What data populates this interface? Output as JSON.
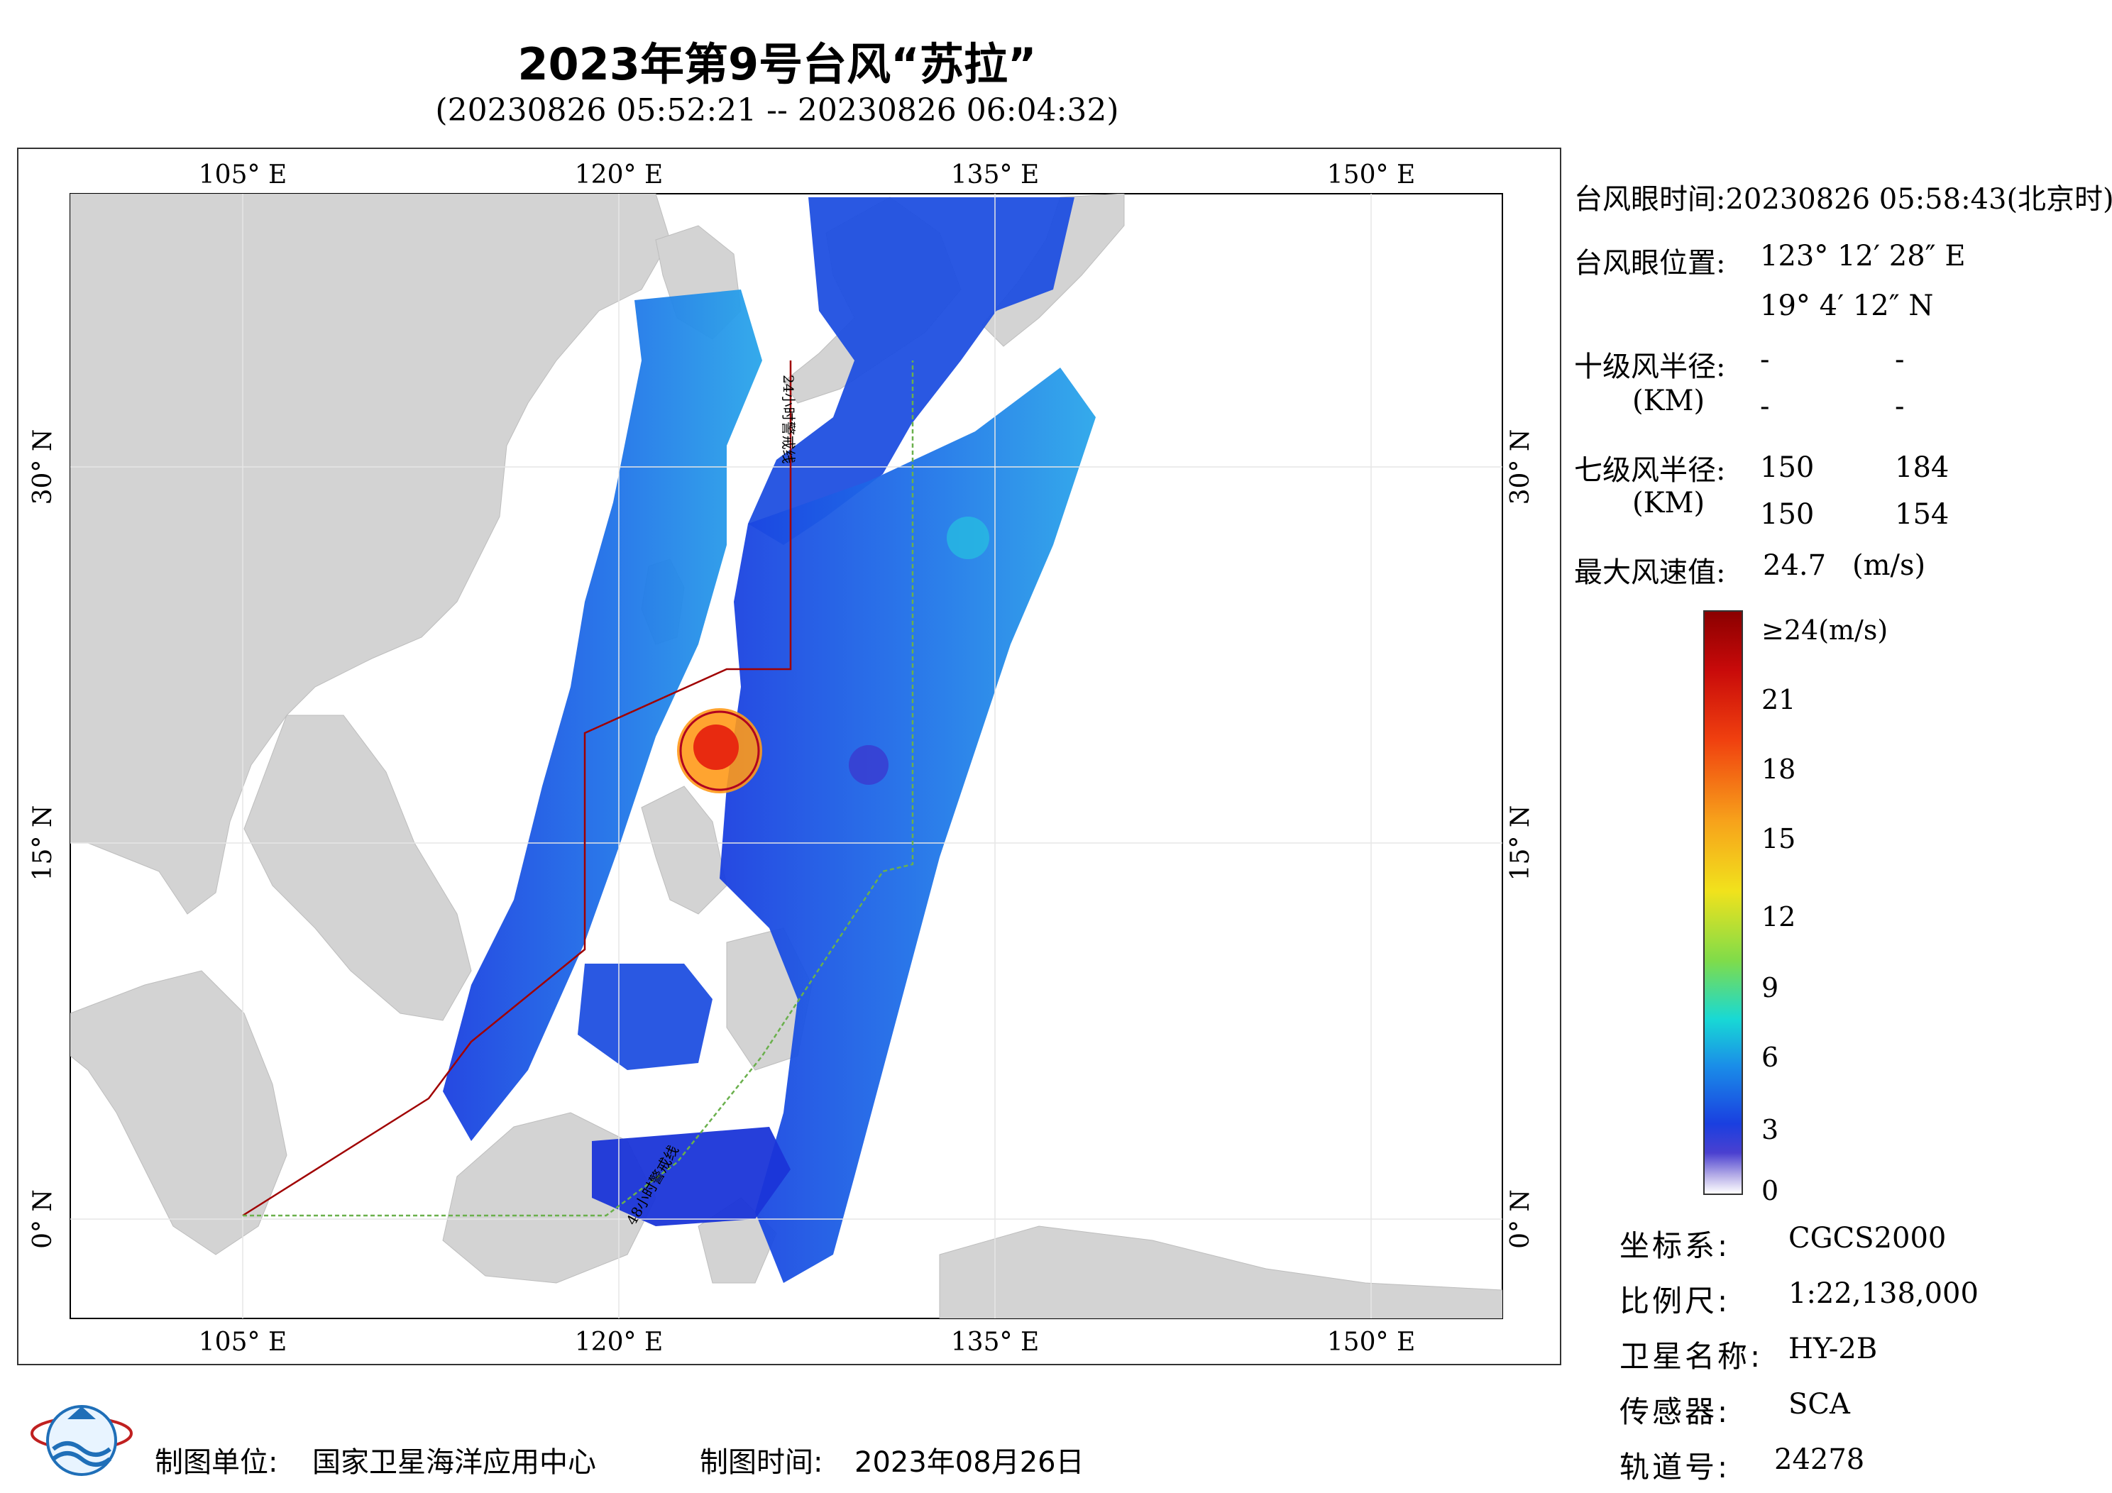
{
  "title": "2023年第9号台风“苏拉”",
  "subtitle": "(20230826 05:52:21 -- 20230826 06:04:32)",
  "map": {
    "lon_ticks": [
      "105° E",
      "120° E",
      "135° E",
      "150° E"
    ],
    "lat_ticks": [
      "30° N",
      "15° N",
      "0° N"
    ],
    "track_label_24h": "24小时警戒线",
    "track_label_48h": "48小时警戒线"
  },
  "info": {
    "eye_time_label": "台风眼时间:",
    "eye_time_value": "20230826 05:58:43(北京时)",
    "eye_pos_label": "台风眼位置:",
    "eye_lon": "123° 12′ 28″ E",
    "eye_lat": "19° 4′ 12″ N",
    "r10_label": "十级风半径:",
    "r10_unit": "(KM)",
    "r10_values": [
      "-",
      "-",
      "-",
      "-"
    ],
    "r7_label": "七级风半径:",
    "r7_unit": "(KM)",
    "r7_values": [
      "150",
      "184",
      "150",
      "154"
    ],
    "max_wind_label": "最大风速值:",
    "max_wind_value": "24.7",
    "max_wind_unit": "(m/s)"
  },
  "colorbar": {
    "labels": [
      "≥24(m/s)",
      "21",
      "18",
      "15",
      "12",
      "9",
      "6",
      "3",
      "0"
    ],
    "colors": [
      "#8b0000",
      "#e4120a",
      "#f5881a",
      "#f2e71c",
      "#7fdc4a",
      "#18d9d5",
      "#1a79e6",
      "#1a2fd8",
      "#ffffff"
    ]
  },
  "meta": {
    "crs_label": "坐标系:",
    "crs_value": "CGCS2000",
    "scale_label": "比例尺:",
    "scale_value": "1:22,138,000",
    "satellite_label": "卫星名称:",
    "satellite_value": "HY-2B",
    "sensor_label": "传感器:",
    "sensor_value": "SCA",
    "orbit_label": "轨道号:",
    "orbit_value": "24278"
  },
  "footer": {
    "org_label": "制图单位:",
    "org_value": "国家卫星海洋应用中心",
    "date_label": "制图时间:",
    "date_value": "2023年08月26日"
  }
}
